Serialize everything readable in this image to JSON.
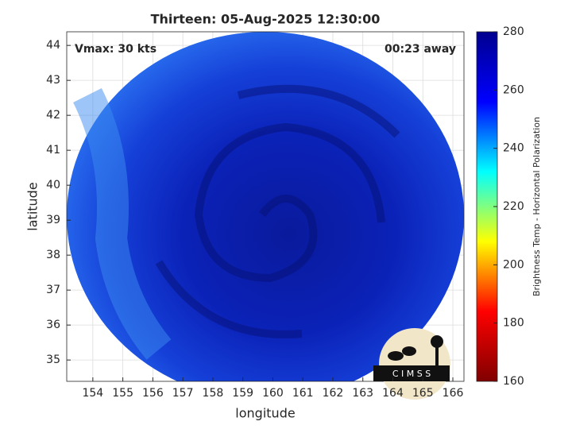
{
  "chart_data": {
    "type": "map",
    "title": "Thirteen: 05-Aug-2025 12:30:00",
    "annotations": [
      "Vmax: 30 kts",
      "00:23 away"
    ],
    "xlabel": "longitude",
    "ylabel": "latitude",
    "xlim": [
      153.13,
      166.37
    ],
    "ylim": [
      34.39,
      44.39
    ],
    "xticks": [
      154,
      155,
      156,
      157,
      158,
      159,
      160,
      161,
      162,
      163,
      164,
      165,
      166
    ],
    "yticks": [
      35,
      36,
      37,
      38,
      39,
      40,
      41,
      42,
      43,
      44
    ],
    "grid": true,
    "colorbar": {
      "label": "Brightness Temp - Horizontal Polarization",
      "lim": [
        160,
        280
      ],
      "ticks": [
        160,
        180,
        200,
        220,
        240,
        260,
        280
      ],
      "colormap": [
        "#800000",
        "#ff0000",
        "#ffff00",
        "#00ffff",
        "#0000ff",
        "#00008f"
      ]
    },
    "logo": "C I M S S"
  }
}
